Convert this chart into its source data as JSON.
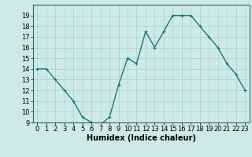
{
  "x": [
    0,
    1,
    2,
    3,
    4,
    5,
    6,
    7,
    8,
    9,
    10,
    11,
    12,
    13,
    14,
    15,
    16,
    17,
    18,
    19,
    20,
    21,
    22,
    23
  ],
  "y": [
    14,
    14,
    13,
    12,
    11,
    9.5,
    9,
    8.8,
    9.5,
    12.5,
    15,
    14.5,
    17.5,
    16,
    17.5,
    19,
    19,
    19,
    18,
    17,
    16,
    14.5,
    13.5,
    12
  ],
  "line_color": "#1a7a6e",
  "marker": "+",
  "marker_size": 3,
  "bg_color": "#ceeae7",
  "grid_color": "#aacfcc",
  "xlabel": "Humidex (Indice chaleur)",
  "ylim": [
    9,
    20
  ],
  "xlim": [
    -0.5,
    23.5
  ],
  "yticks": [
    9,
    10,
    11,
    12,
    13,
    14,
    15,
    16,
    17,
    18,
    19
  ],
  "xticks": [
    0,
    1,
    2,
    3,
    4,
    5,
    6,
    7,
    8,
    9,
    10,
    11,
    12,
    13,
    14,
    15,
    16,
    17,
    18,
    19,
    20,
    21,
    22,
    23
  ],
  "tick_fontsize": 6,
  "xlabel_fontsize": 7
}
